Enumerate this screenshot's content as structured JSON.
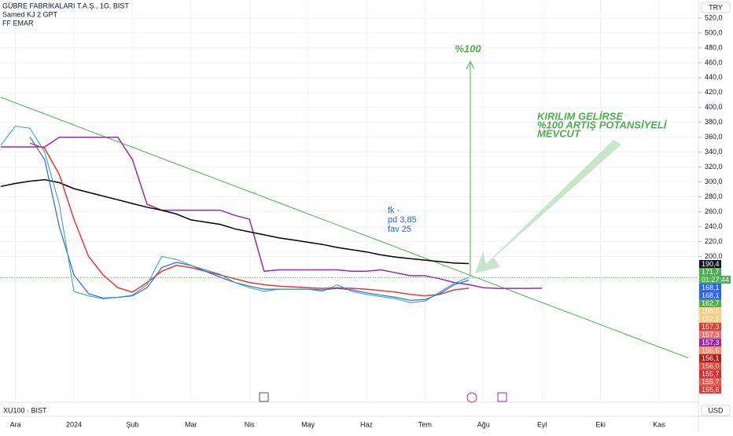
{
  "header": {
    "title": "GÜBRE FABRİKALARI T.A.Ş., 1G, BIST",
    "indicators": [
      "Samed KJ 2 GPT",
      "FF EMAR"
    ],
    "currency": "TRY",
    "sub_symbol": "XU100 · BIST",
    "sub_currency": "USD"
  },
  "chart_data": {
    "type": "line",
    "categories": [
      null,
      "Ara",
      null,
      null,
      null,
      "2024",
      null,
      null,
      null,
      "Şub",
      null,
      null,
      null,
      "Mar",
      null,
      null,
      null,
      "Nis",
      null,
      null,
      null,
      "May",
      null,
      null,
      null,
      "Haz",
      null,
      null,
      null,
      "Tem",
      null,
      null,
      null,
      "Ağu",
      null,
      null,
      null,
      "Eyl",
      null,
      null,
      null,
      "Eki",
      null,
      null,
      null,
      "Kas",
      null,
      null
    ],
    "ylim": [
      4.2,
      544.3
    ],
    "yticks": [
      {
        "value": 200,
        "label": "200,0"
      },
      {
        "value": 220,
        "label": "220,0"
      },
      {
        "value": 240,
        "label": "240,0"
      },
      {
        "value": 260,
        "label": "260,0"
      },
      {
        "value": 280,
        "label": "280,0"
      },
      {
        "value": 300,
        "label": "300,0"
      },
      {
        "value": 320,
        "label": "320,0"
      },
      {
        "value": 340,
        "label": "340,0"
      },
      {
        "value": 360,
        "label": "360,0"
      },
      {
        "value": 380,
        "label": "380,0"
      },
      {
        "value": 400,
        "label": "400,0"
      },
      {
        "value": 420,
        "label": "420,0"
      },
      {
        "value": 440,
        "label": "440,0"
      },
      {
        "value": 460,
        "label": "460,0"
      },
      {
        "value": 480,
        "label": "480,0"
      },
      {
        "value": 500,
        "label": "500,0"
      },
      {
        "value": 520,
        "label": "520,0"
      }
    ],
    "grid": true,
    "series": [
      {
        "color": "#4caf50",
        "width": 1,
        "values": [
          413.6,
          406.2,
          398.7,
          391.3,
          383.8,
          376.4,
          368.9,
          361.5,
          354.0,
          346.6,
          339.1,
          331.7,
          324.2,
          316.8,
          309.4,
          301.9,
          294.5,
          287.0,
          279.6,
          272.1,
          264.7,
          257.2,
          249.8,
          242.3,
          234.9,
          227.4,
          220.0,
          212.6,
          205.1,
          197.7,
          190.2,
          182.8,
          175.3,
          167.9,
          160.4,
          153.0,
          145.5,
          138.1,
          130.6,
          123.2,
          115.8,
          108.3,
          100.9,
          93.4,
          86.0,
          78.5,
          71.1,
          63.6
        ]
      },
      {
        "color": "#9c27b0",
        "width": 1.5,
        "values": [
          347,
          347,
          347,
          347,
          360,
          360,
          360,
          360,
          360,
          330,
          270,
          262,
          262,
          262,
          262,
          262,
          255,
          250,
          180,
          182,
          182,
          182,
          182,
          182,
          180,
          180,
          182,
          178,
          174,
          174,
          170,
          165,
          162,
          158,
          157,
          157,
          157,
          157.3,
          null,
          null,
          null,
          null,
          null,
          null,
          null,
          null,
          null,
          null
        ]
      },
      {
        "color": "#000000",
        "width": 1.5,
        "values": [
          294,
          298,
          301,
          303,
          299,
          291,
          286,
          281,
          276,
          271,
          266,
          262,
          257,
          249,
          246,
          243,
          237,
          233,
          229,
          225,
          222,
          219,
          216,
          212,
          209,
          206,
          202,
          199,
          197,
          195,
          193,
          191,
          190.4,
          null,
          null,
          null,
          null,
          null,
          null,
          null,
          null,
          null,
          null,
          null,
          null,
          null,
          null,
          null
        ]
      },
      {
        "color": "#e53935",
        "width": 1.5,
        "values": [
          null,
          null,
          352,
          345,
          310,
          250,
          200,
          175,
          158,
          152,
          165,
          180,
          188,
          185,
          180,
          175,
          170,
          165,
          162,
          160,
          159,
          158,
          157,
          158,
          157,
          156,
          154,
          152,
          149,
          147,
          149,
          155,
          157.3,
          null,
          null,
          null,
          null,
          null,
          null,
          null,
          null,
          null,
          null,
          null,
          null,
          null,
          null,
          null
        ]
      },
      {
        "color": "#2962ff",
        "width": 1.2,
        "values": [
          null,
          null,
          360,
          330,
          240,
          175,
          150,
          144,
          145,
          147,
          158,
          185,
          192,
          188,
          180,
          172,
          165,
          160,
          156,
          156,
          156,
          156,
          155,
          157,
          155,
          151,
          148,
          145,
          141,
          142,
          150,
          162,
          168.1,
          null,
          null,
          null,
          null,
          null,
          null,
          null,
          null,
          null,
          null,
          null,
          null,
          null,
          null,
          null
        ]
      },
      {
        "color": "#26a69a",
        "width": 1,
        "values": [
          349,
          375,
          372,
          340,
          270,
          153,
          147,
          143,
          145,
          148,
          162,
          200,
          196,
          188,
          182,
          176,
          165,
          158,
          153,
          156,
          156,
          156,
          153,
          162,
          153,
          149,
          146,
          143,
          138,
          140,
          152,
          164,
          171.7,
          null,
          null,
          null,
          null,
          null,
          null,
          null,
          null,
          null,
          null,
          null,
          null,
          null,
          null,
          null
        ]
      }
    ],
    "price_labels": [
      {
        "value": 190.4,
        "label": "190,4",
        "color": "#131722"
      },
      {
        "value": 171.7,
        "label": "171,7",
        "color": "#4caf50"
      },
      {
        "value": 168.1,
        "label": "168,1",
        "color": "#2962ff"
      },
      {
        "value": 168.1,
        "label": "168,1",
        "color": "#2962ff"
      },
      {
        "value": 162.7,
        "label": "162,7",
        "color": "#4caf50"
      },
      {
        "value": 158.6,
        "label": "158,6",
        "color": "#ffcc80"
      },
      {
        "value": 157.5,
        "label": "157,5",
        "color": "#ffcc80"
      },
      {
        "value": 157.3,
        "label": "157,3",
        "color": "#e53935"
      },
      {
        "value": 157.3,
        "label": "157,3",
        "color": "#e57373"
      },
      {
        "value": 157.3,
        "label": "157,3",
        "color": "#9c27b0"
      },
      {
        "value": 156.6,
        "label": "156,6",
        "color": "#ff8a65"
      },
      {
        "value": 156.1,
        "label": "156,1",
        "color": "#b71c1c"
      },
      {
        "value": 156.0,
        "label": "156,0",
        "color": "#f44336"
      },
      {
        "value": 155.7,
        "label": "155,7",
        "color": "#d32f2f"
      },
      {
        "value": 155.7,
        "label": "155,7",
        "color": "#ef5350"
      },
      {
        "value": 155.6,
        "label": "155,6",
        "color": "#e53935"
      }
    ],
    "countdown": "01:27:44",
    "annotations": [
      {
        "text": "%100",
        "color": "#4caf50"
      },
      {
        "text": "KIRILIM GELİRSE",
        "color": "#4caf50"
      },
      {
        "text": "%100 ARTIŞ POTANSİYELİ",
        "color": "#4caf50"
      },
      {
        "text": "MEVCUT",
        "color": "#4caf50"
      },
      {
        "text": "fk -",
        "color": "#2962ff"
      },
      {
        "text": "pd 3,85",
        "color": "#2962ff"
      },
      {
        "text": "fav 25",
        "color": "#2962ff"
      }
    ]
  }
}
